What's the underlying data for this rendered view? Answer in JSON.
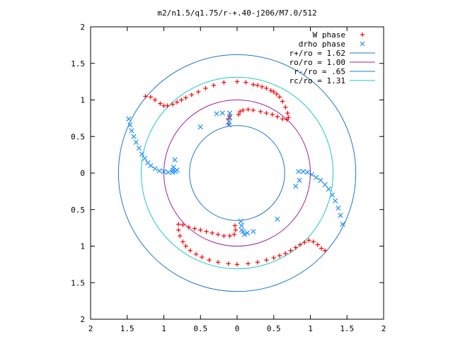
{
  "chart_data": {
    "type": "scatter",
    "title": "m2/n1.5/q1.75/r-+.40-j206/M7.0/512",
    "xlabel": "",
    "ylabel": "",
    "xlim": [
      -2,
      2
    ],
    "ylim": [
      -2,
      2
    ],
    "x_ticks": [
      -2,
      -1.5,
      -1,
      -0.5,
      0,
      0.5,
      1,
      1.5,
      2
    ],
    "y_ticks": [
      -2,
      -1.5,
      -1,
      -0.5,
      0,
      0.5,
      1,
      1.5,
      2
    ],
    "x_tick_labels": [
      "2",
      "1.5",
      "1",
      "0.5",
      "0",
      "0.5",
      "1",
      "1.5",
      "2"
    ],
    "y_tick_labels": [
      "2",
      "1.5",
      "1",
      "0.5",
      "0",
      "0.5",
      "1",
      "1.5",
      "2"
    ],
    "grid": false,
    "legend_position": "top-right",
    "legend": [
      {
        "label": "W phase",
        "kind": "plus",
        "color": "#ff0000"
      },
      {
        "label": "drho phase",
        "kind": "cross",
        "color": "#1e90ff"
      },
      {
        "label": "r+/ro = 1.62",
        "kind": "line",
        "color": "#1e78c8"
      },
      {
        "label": "ro/ro = 1.00",
        "kind": "line",
        "color": "#a020a0"
      },
      {
        "label": "r-/ro = .65",
        "kind": "line",
        "color": "#1e78c8"
      },
      {
        "label": "rc/ro = 1.31",
        "kind": "line",
        "color": "#20c8c8"
      }
    ],
    "circles": [
      {
        "name": "r+/ro = 1.62",
        "radius": 1.62,
        "color": "#1e78c8"
      },
      {
        "name": "ro/ro = 1.00",
        "radius": 1.0,
        "color": "#a020a0"
      },
      {
        "name": "r-/ro = .65",
        "radius": 0.65,
        "color": "#1e78c8"
      },
      {
        "name": "rc/ro = 1.31",
        "radius": 1.31,
        "color": "#20c8c8"
      }
    ],
    "series": [
      {
        "name": "W phase",
        "marker": "plus",
        "color": "#ff0000",
        "points": [
          [
            -1.25,
            1.05
          ],
          [
            -1.18,
            1.04
          ],
          [
            -1.12,
            1.0
          ],
          [
            -1.05,
            0.95
          ],
          [
            -1.0,
            0.92
          ],
          [
            -0.95,
            0.92
          ],
          [
            -0.88,
            0.94
          ],
          [
            -0.82,
            0.97
          ],
          [
            -0.76,
            1.0
          ],
          [
            -0.7,
            1.03
          ],
          [
            -0.62,
            1.07
          ],
          [
            -0.53,
            1.11
          ],
          [
            -0.43,
            1.16
          ],
          [
            -0.32,
            1.2
          ],
          [
            -0.18,
            1.24
          ],
          [
            0.0,
            1.25
          ],
          [
            0.12,
            1.24
          ],
          [
            0.22,
            1.21
          ],
          [
            0.28,
            1.2
          ],
          [
            0.34,
            1.18
          ],
          [
            0.4,
            1.16
          ],
          [
            0.46,
            1.13
          ],
          [
            0.5,
            1.11
          ],
          [
            0.54,
            1.08
          ],
          [
            0.58,
            1.04
          ],
          [
            0.62,
            0.98
          ],
          [
            0.66,
            0.9
          ],
          [
            0.69,
            0.82
          ],
          [
            0.7,
            0.76
          ],
          [
            0.68,
            0.73
          ],
          [
            0.62,
            0.74
          ],
          [
            0.55,
            0.77
          ],
          [
            0.48,
            0.8
          ],
          [
            0.4,
            0.82
          ],
          [
            0.32,
            0.84
          ],
          [
            0.22,
            0.86
          ],
          [
            0.15,
            0.87
          ],
          [
            0.08,
            0.86
          ],
          [
            0.04,
            0.84
          ],
          [
            0.02,
            0.8
          ],
          [
            -0.1,
            0.78
          ],
          [
            -0.12,
            0.74
          ],
          [
            -0.12,
            0.67
          ],
          [
            -0.8,
            -0.7
          ],
          [
            -0.74,
            -0.71
          ],
          [
            -0.66,
            -0.74
          ],
          [
            -0.58,
            -0.76
          ],
          [
            -0.5,
            -0.78
          ],
          [
            -0.42,
            -0.8
          ],
          [
            -0.34,
            -0.82
          ],
          [
            -0.26,
            -0.84
          ],
          [
            -0.18,
            -0.86
          ],
          [
            -0.1,
            -0.86
          ],
          [
            -0.04,
            -0.84
          ],
          [
            -0.02,
            -0.78
          ],
          [
            -0.03,
            -0.72
          ],
          [
            -0.8,
            -0.78
          ],
          [
            -0.78,
            -0.86
          ],
          [
            -0.74,
            -0.94
          ],
          [
            -0.7,
            -1.0
          ],
          [
            -0.64,
            -1.06
          ],
          [
            -0.56,
            -1.11
          ],
          [
            -0.48,
            -1.15
          ],
          [
            -0.38,
            -1.19
          ],
          [
            -0.26,
            -1.22
          ],
          [
            -0.12,
            -1.24
          ],
          [
            0.0,
            -1.25
          ],
          [
            0.15,
            -1.24
          ],
          [
            0.28,
            -1.22
          ],
          [
            0.4,
            -1.19
          ],
          [
            0.5,
            -1.16
          ],
          [
            0.58,
            -1.13
          ],
          [
            0.66,
            -1.1
          ],
          [
            0.73,
            -1.06
          ],
          [
            0.8,
            -1.02
          ],
          [
            0.86,
            -0.98
          ],
          [
            0.92,
            -0.95
          ],
          [
            0.98,
            -0.92
          ],
          [
            1.04,
            -0.94
          ],
          [
            1.1,
            -0.98
          ],
          [
            1.15,
            -1.03
          ],
          [
            1.2,
            -1.06
          ]
        ]
      },
      {
        "name": "drho phase",
        "marker": "cross",
        "color": "#1e90ff",
        "points": [
          [
            -1.48,
            0.74
          ],
          [
            -1.46,
            0.66
          ],
          [
            -1.44,
            0.58
          ],
          [
            -1.41,
            0.5
          ],
          [
            -1.38,
            0.42
          ],
          [
            -1.34,
            0.34
          ],
          [
            -1.3,
            0.26
          ],
          [
            -1.26,
            0.2
          ],
          [
            -1.22,
            0.14
          ],
          [
            -1.18,
            0.1
          ],
          [
            -1.12,
            0.06
          ],
          [
            -1.06,
            0.03
          ],
          [
            -1.0,
            0.02
          ],
          [
            -0.94,
            0.01
          ],
          [
            -0.88,
            0.01
          ],
          [
            -0.84,
            0.02
          ],
          [
            -0.82,
            0.04
          ],
          [
            0.84,
            0.02
          ],
          [
            0.9,
            0.02
          ],
          [
            0.96,
            0.01
          ],
          [
            1.02,
            -0.02
          ],
          [
            1.08,
            -0.06
          ],
          [
            1.14,
            -0.1
          ],
          [
            1.2,
            -0.16
          ],
          [
            1.25,
            -0.22
          ],
          [
            1.3,
            -0.3
          ],
          [
            1.34,
            -0.38
          ],
          [
            1.38,
            -0.48
          ],
          [
            1.41,
            -0.58
          ],
          [
            1.44,
            -0.7
          ],
          [
            -0.1,
            0.82
          ],
          [
            -0.1,
            0.76
          ],
          [
            -0.11,
            0.7
          ],
          [
            -0.11,
            0.66
          ],
          [
            0.05,
            -0.66
          ],
          [
            0.06,
            -0.72
          ],
          [
            0.06,
            -0.78
          ],
          [
            -0.5,
            0.63
          ],
          [
            -0.28,
            0.81
          ],
          [
            -0.2,
            0.82
          ],
          [
            -0.85,
            0.18
          ],
          [
            -0.87,
            0.08
          ],
          [
            -0.88,
            0.04
          ],
          [
            0.8,
            -0.18
          ],
          [
            0.85,
            -0.1
          ],
          [
            0.55,
            -0.63
          ],
          [
            0.22,
            -0.8
          ],
          [
            0.14,
            -0.82
          ],
          [
            0.1,
            -0.84
          ],
          [
            0.08,
            -0.8
          ]
        ]
      }
    ]
  }
}
